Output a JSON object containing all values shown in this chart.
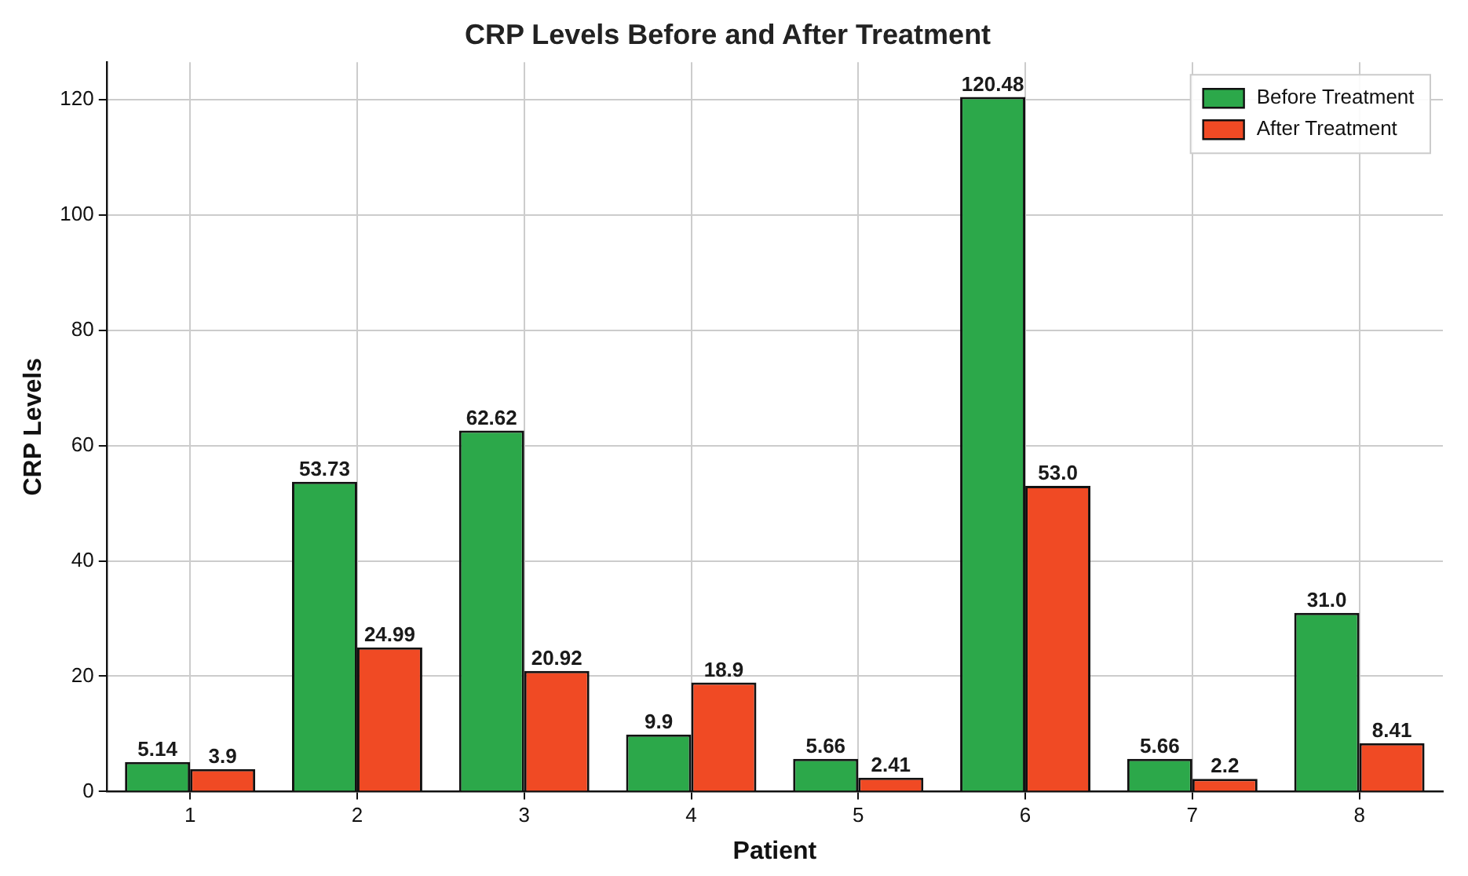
{
  "chart_data": {
    "type": "bar",
    "title": "CRP Levels Before and After Treatment",
    "xlabel": "Patient",
    "ylabel": "CRP Levels",
    "categories": [
      "1",
      "2",
      "3",
      "4",
      "5",
      "6",
      "7",
      "8"
    ],
    "series": [
      {
        "name": "Before Treatment",
        "color": "#2ca84a",
        "values": [
          5.14,
          53.73,
          62.62,
          9.9,
          5.66,
          120.48,
          5.66,
          31.0
        ],
        "value_labels": [
          "5.14",
          "53.73",
          "62.62",
          "9.9",
          "5.66",
          "120.48",
          "5.66",
          "31.0"
        ]
      },
      {
        "name": "After Treatment",
        "color": "#f04a24",
        "values": [
          3.9,
          24.99,
          20.92,
          18.9,
          2.41,
          53.0,
          2.2,
          8.41
        ],
        "value_labels": [
          "3.9",
          "24.99",
          "20.92",
          "18.9",
          "2.41",
          "53.0",
          "2.2",
          "8.41"
        ]
      }
    ],
    "ylim": [
      0,
      126.5
    ],
    "yticks": [
      0,
      20,
      40,
      60,
      80,
      100,
      120
    ],
    "grid": true,
    "legend": "top right"
  }
}
